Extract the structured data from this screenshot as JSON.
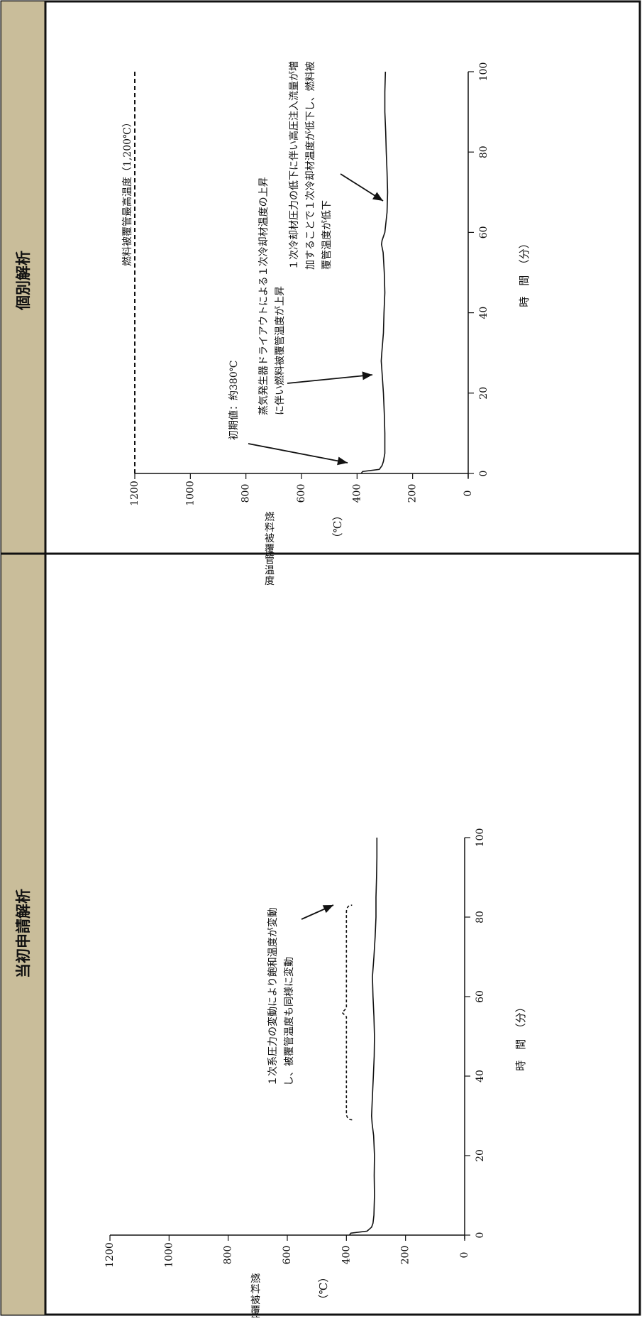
{
  "colors": {
    "header_bg": "#c9bd9a",
    "border": "#111111",
    "line": "#111111"
  },
  "panels": [
    {
      "header": "個別解析"
    },
    {
      "header": "当初申請解析"
    }
  ],
  "chart_data": [
    {
      "type": "line",
      "title": "",
      "xlabel": "時　間　（分）",
      "ylabel": "燃料被覆管温度",
      "yunit": "（℃）",
      "xlim": [
        0,
        100
      ],
      "ylim": [
        0,
        1200
      ],
      "xticks": [
        0,
        20,
        40,
        60,
        80,
        100
      ],
      "yticks": [
        0,
        200,
        400,
        600,
        800,
        1000,
        1200
      ],
      "series": [
        {
          "style": "solid",
          "x": [
            0,
            0.5,
            1,
            2,
            3,
            5,
            10,
            15,
            20,
            25,
            28,
            30,
            35,
            40,
            45,
            50,
            55,
            57,
            58,
            60,
            65,
            70,
            75,
            80,
            85,
            90,
            95,
            100
          ],
          "y": [
            385,
            380,
            320,
            310,
            305,
            300,
            300,
            302,
            305,
            310,
            313,
            311,
            305,
            303,
            300,
            302,
            306,
            312,
            310,
            300,
            292,
            290,
            292,
            295,
            297,
            300,
            300,
            298
          ]
        },
        {
          "style": "dashed",
          "x": [
            0,
            100
          ],
          "y": [
            1200,
            1200
          ]
        }
      ],
      "annotations": [
        {
          "text": "燃料被覆管最高温度（1,200℃）"
        },
        {
          "text": "初期値：約380℃"
        },
        {
          "text": "蒸気発生器ドライアウトによる１次冷却材温度の上昇"
        },
        {
          "text": "に伴い燃料被覆管温度が上昇"
        },
        {
          "text": "１次冷却材圧力の低下に伴い高圧注入流量が増"
        },
        {
          "text": "加することで１次冷却材温度が低下し、燃料被"
        },
        {
          "text": "覆管温度が低下"
        }
      ]
    },
    {
      "type": "line",
      "title": "",
      "xlabel": "時　間　（分）",
      "ylabel": "燃料被覆管温度",
      "yunit": "（℃）",
      "xlim": [
        0,
        100
      ],
      "ylim": [
        0,
        1200
      ],
      "xticks": [
        0,
        20,
        40,
        60,
        80,
        100
      ],
      "yticks": [
        0,
        200,
        400,
        600,
        800,
        1000,
        1200
      ],
      "series": [
        {
          "style": "solid",
          "x": [
            0,
            0.5,
            1,
            2,
            3,
            5,
            10,
            15,
            20,
            25,
            28,
            30,
            35,
            40,
            45,
            50,
            55,
            60,
            65,
            70,
            75,
            80,
            85,
            90,
            95,
            100
          ],
          "y": [
            390,
            385,
            330,
            315,
            310,
            307,
            305,
            306,
            305,
            308,
            313,
            315,
            312,
            309,
            306,
            305,
            307,
            310,
            312,
            307,
            303,
            300,
            300,
            298,
            297,
            297
          ]
        }
      ],
      "bracket": {
        "x_start": 29,
        "x_mid": 56,
        "x_end": 83,
        "y": 400
      },
      "annotations": [
        {
          "text": "１次系圧力の変動により飽和温度が変動"
        },
        {
          "text": "し、被覆管温度も同様に変動"
        }
      ]
    }
  ]
}
